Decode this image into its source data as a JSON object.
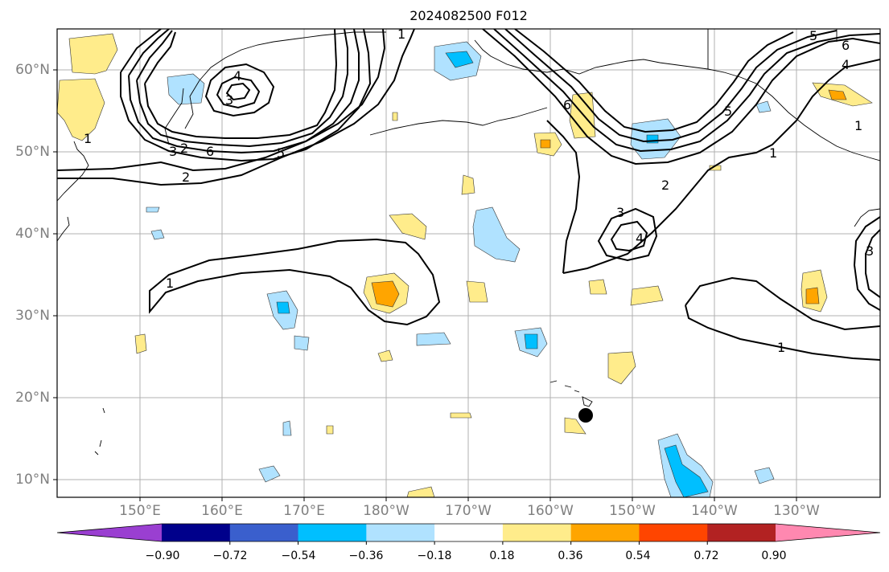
{
  "title": "2024082500 F012",
  "lat_labels": [
    "60°N",
    "50°N",
    "40°N",
    "30°N",
    "20°N",
    "10°N"
  ],
  "lon_labels": [
    "150°E",
    "160°E",
    "170°E",
    "180°W",
    "170°W",
    "160°W",
    "150°W",
    "140°W",
    "130°W"
  ],
  "colorbar": {
    "colors": [
      "#9a3fd1",
      "#00008b",
      "#3a5fcd",
      "#00bfff",
      "#b0e2ff",
      "#ffffff",
      "#ffec8b",
      "#ffa500",
      "#ff4500",
      "#b22222",
      "#ff88b0"
    ],
    "tick_labels": [
      "−0.90",
      "−0.72",
      "−0.54",
      "−0.36",
      "−0.18",
      "0.18",
      "0.36",
      "0.54",
      "0.72",
      "0.90"
    ]
  },
  "contour_labels": [
    "1",
    "2",
    "3",
    "4",
    "5",
    "6"
  ],
  "marker": "storm-position-marker"
}
